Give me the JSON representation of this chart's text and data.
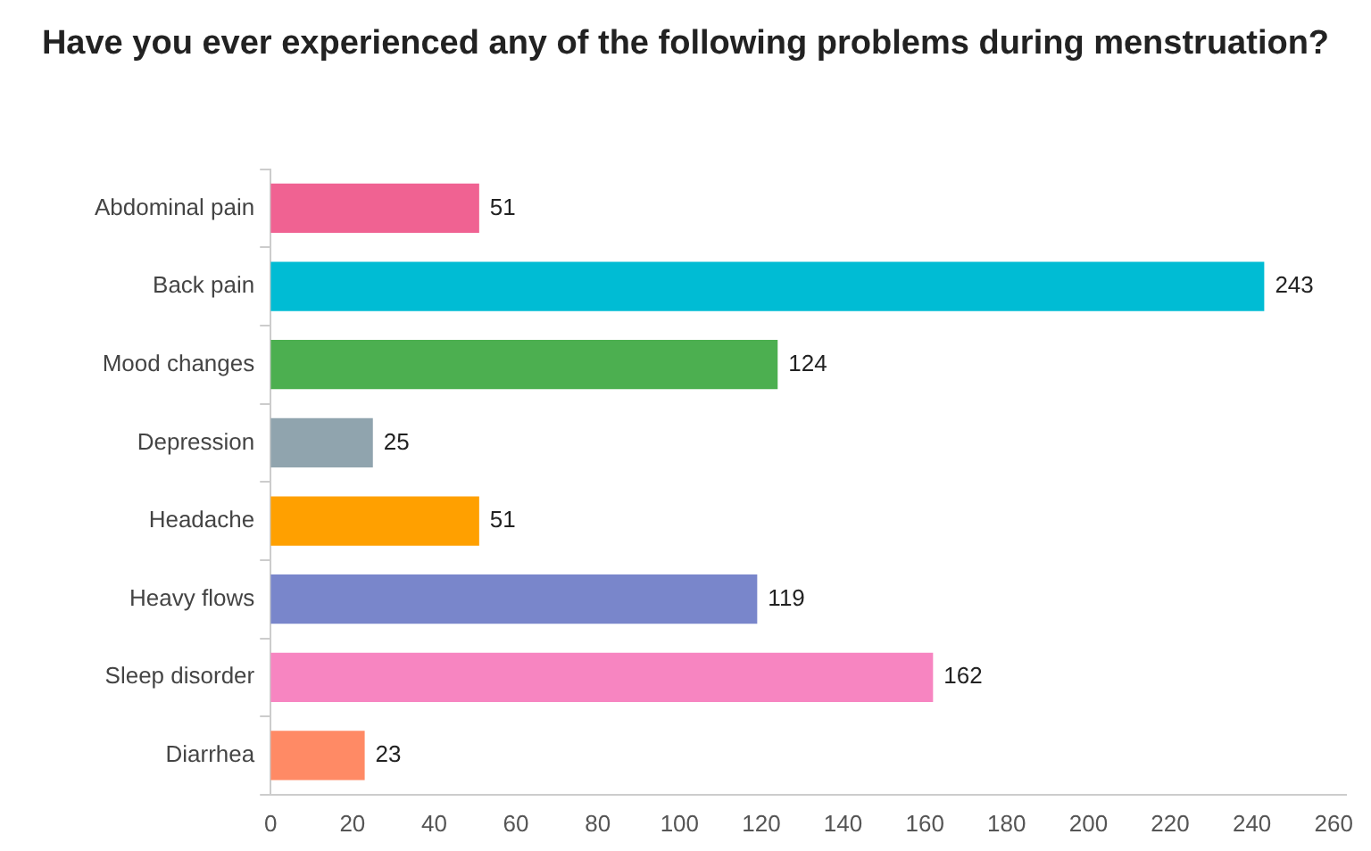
{
  "chart_data": {
    "type": "bar",
    "orientation": "horizontal",
    "title": "Have you ever experienced any of the following problems during menstruation?",
    "categories": [
      "Abdominal pain",
      "Back pain",
      "Mood changes",
      "Depression",
      "Headache",
      "Heavy flows",
      "Sleep disorder",
      "Diarrhea"
    ],
    "values": [
      51,
      243,
      124,
      25,
      51,
      119,
      162,
      23
    ],
    "colors": [
      "#f06292",
      "#00bcd4",
      "#4caf50",
      "#90a4ae",
      "#ffa000",
      "#7986cb",
      "#f785c1",
      "#ff8a65"
    ],
    "xlim": [
      0,
      263
    ],
    "xticks": [
      0,
      20,
      40,
      60,
      80,
      100,
      120,
      140,
      160,
      180,
      200,
      220,
      240,
      260
    ],
    "grid": false,
    "legend": false,
    "data_labels": true
  }
}
